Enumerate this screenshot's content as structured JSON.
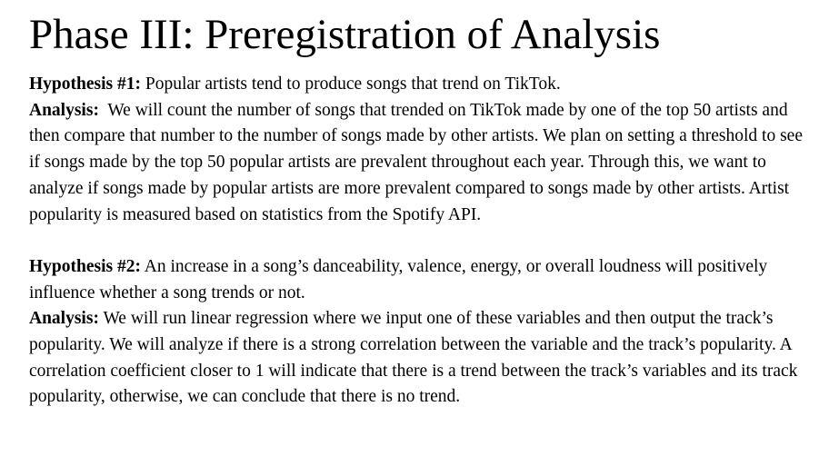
{
  "title": "Phase III: Preregistration of Analysis",
  "sections": [
    {
      "hypothesis_label": "Hypothesis #1:",
      "hypothesis_text": " Popular artists tend to produce songs that trend on TikTok.",
      "analysis_label": "Analysis:",
      "analysis_text": "  We will count the number of songs that trended on TikTok made by one of the top 50 artists and then compare that number to the number of songs made by other artists. We plan on setting a threshold to see if songs made by the top 50 popular artists are prevalent throughout each year. Through this, we want to analyze if songs made by popular artists are more prevalent compared to songs made by other artists. Artist popularity is measured based on statistics from the Spotify API."
    },
    {
      "hypothesis_label": "Hypothesis #2:",
      "hypothesis_text": " An increase in a song’s danceability, valence, energy, or overall loudness will positively influence whether a song trends or not.",
      "analysis_label": "Analysis:",
      "analysis_text": " We will run linear regression where we input one of these variables and then output the track’s popularity. We will analyze if there is a strong correlation between the variable and the track’s popularity. A correlation coefficient closer to 1 will indicate that there is a trend between the track’s variables and its track popularity, otherwise, we can conclude that there is no trend."
    }
  ]
}
